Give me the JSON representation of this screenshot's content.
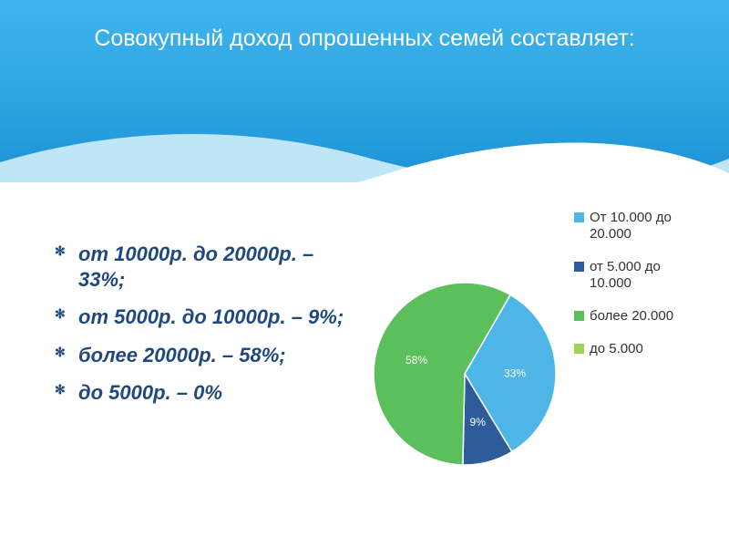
{
  "title": "Совокупный доход опрошенных семей составляет:",
  "bullets": {
    "items": [
      "от 10000р. до 20000р. – 33%;",
      "от 5000р. до 10000р. – 9%;",
      "более 20000р. – 58%;",
      "до 5000р. – 0%"
    ],
    "text_color": "#1f497d",
    "font_size_pt": 22,
    "font_weight": "bold",
    "font_style": "italic"
  },
  "chart": {
    "type": "pie",
    "background_color": "#ffffff",
    "slices": [
      {
        "label": "От 10.000 до 20.000",
        "value": 33,
        "display": "33%",
        "color": "#4eb6e7"
      },
      {
        "label": "от 5.000 до 10.000",
        "value": 9,
        "display": "9%",
        "color": "#2e5b9a"
      },
      {
        "label": "более 20.000",
        "value": 58,
        "display": "58%",
        "color": "#5bbf5b"
      },
      {
        "label": "до 5.000",
        "value": 0,
        "display": "",
        "color": "#9bd457"
      }
    ],
    "start_angle_deg": -60,
    "label_color": "#ffffff",
    "label_fontsize": 12,
    "outline_color": "#ffffff",
    "outline_width": 1.5,
    "legend": {
      "position": "right",
      "font_size": 15,
      "text_color": "#333333"
    }
  },
  "header": {
    "gradient_top": "#3fb5ed",
    "gradient_bottom": "#1a8fd4",
    "title_color": "#ffffff",
    "title_fontsize": 25
  },
  "wave": {
    "back_color": "#bfe6f7",
    "front_color": "#ffffff"
  }
}
